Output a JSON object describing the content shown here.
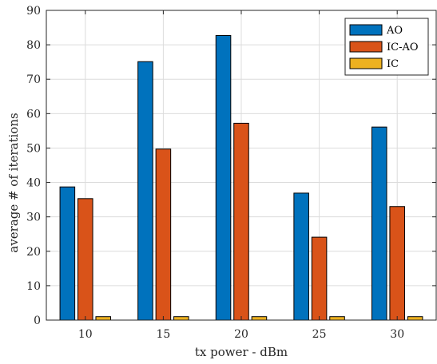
{
  "chart_data": {
    "type": "bar",
    "title": "",
    "xlabel": "tx power - dBm",
    "ylabel": "average # of iterations",
    "categories": [
      "10",
      "15",
      "20",
      "25",
      "30"
    ],
    "series": [
      {
        "name": "AO",
        "color": "#0072BD",
        "values": [
          38.7,
          75.1,
          82.7,
          36.9,
          56.1
        ]
      },
      {
        "name": "IC-AO",
        "color": "#D95319",
        "values": [
          35.3,
          49.7,
          57.2,
          24.1,
          33.0
        ]
      },
      {
        "name": "IC",
        "color": "#EDB120",
        "values": [
          1,
          1,
          1,
          1,
          1
        ]
      }
    ],
    "ylim": [
      0,
      90
    ],
    "yticks": [
      "0",
      "10",
      "20",
      "30",
      "40",
      "50",
      "60",
      "70",
      "80",
      "90"
    ],
    "grid": true,
    "legend_position": "top-right"
  }
}
